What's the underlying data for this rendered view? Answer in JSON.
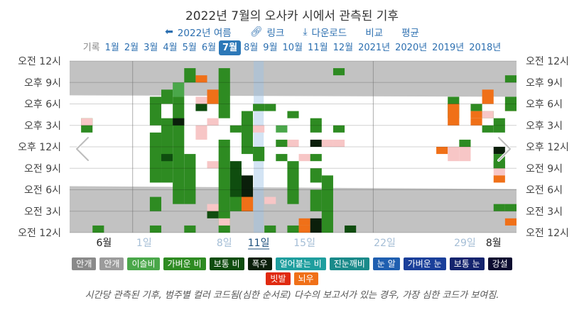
{
  "title": "2022년 7월의 오사카 시에서 관측된 기후",
  "toolbar": {
    "back_label": "2022년 여름",
    "link_label": "링크",
    "download_label": "다운로드",
    "compare_label": "비교",
    "average_label": "평균"
  },
  "months_bar": {
    "label": "기록",
    "items": [
      "1월",
      "2월",
      "3월",
      "4월",
      "5월",
      "6월",
      "7월",
      "8월",
      "9월",
      "10월",
      "11월",
      "12월",
      "2021년",
      "2020년",
      "2019년",
      "2018년"
    ],
    "active": "7월"
  },
  "legend": {
    "row1": [
      {
        "label": "안개",
        "color": "#8a8a8a"
      },
      {
        "label": "안개",
        "color": "#9b9b9b"
      },
      {
        "label": "이슬비",
        "color": "#4aa74a"
      },
      {
        "label": "가벼운 비",
        "color": "#2e8b22"
      },
      {
        "label": "보통 비",
        "color": "#0f4d0f"
      },
      {
        "label": "폭우",
        "color": "#0b1f0b"
      },
      {
        "label": "얼어붙는 비",
        "color": "#1e9e9e"
      },
      {
        "label": "진눈깨비",
        "color": "#1a8a8a"
      },
      {
        "label": "눈 알",
        "color": "#1f5fb0"
      },
      {
        "label": "가벼운 눈",
        "color": "#1a3f9a"
      },
      {
        "label": "보통 눈",
        "color": "#14246e"
      },
      {
        "label": "강설",
        "color": "#0c0c30"
      }
    ],
    "row2": [
      {
        "label": "빗발",
        "color": "#e02a10"
      },
      {
        "label": "뇌우",
        "color": "#f07018"
      }
    ]
  },
  "caption": "시간당 관측된 기후, 범주별 컬러 코드됨(심한 순서로) 다수의 보고서가 있는 경우, 가장 심한 코드가 보여짐.",
  "chart_data": {
    "type": "heatmap",
    "title": "2022년 7월의 오사카 시에서 관측된 기후",
    "y_ticks": [
      "오전 12시",
      "오전 3시",
      "오전 6시",
      "오전 9시",
      "오후 12시",
      "오후 3시",
      "오후 6시",
      "오후 9시",
      "오전 12시"
    ],
    "x_ticks": [
      {
        "label": "6월",
        "day": -2.5,
        "style": "month"
      },
      {
        "label": "1일",
        "day": 1,
        "style": "day"
      },
      {
        "label": "8일",
        "day": 8,
        "style": "day"
      },
      {
        "label": "11일",
        "day": 11,
        "style": "selected"
      },
      {
        "label": "15일",
        "day": 15,
        "style": "day"
      },
      {
        "label": "22일",
        "day": 22,
        "style": "day"
      },
      {
        "label": "29일",
        "day": 29,
        "style": "day"
      },
      {
        "label": "8월",
        "day": 31.5,
        "style": "month"
      }
    ],
    "x_range_days": [
      -5,
      34
    ],
    "selected_day": 11,
    "night": {
      "morning_end_hour": [
        6.5,
        6.1
      ],
      "evening_start_hour": [
        19.2,
        19.0
      ]
    },
    "categories": {
      "D": "이슬비",
      "L": "가벼운 비",
      "M": "보통 비",
      "H": "폭우",
      "T": "뇌우",
      "P": "light-pink"
    },
    "colors": {
      "D": "#4aa74a",
      "L": "#2e8b22",
      "M": "#0f4d0f",
      "H": "#0b1f0b",
      "T": "#f07018",
      "P": "#f7c6c6"
    },
    "observations": [
      {
        "day": -4,
        "hours": [
          [
            14,
            16,
            "L"
          ],
          [
            15,
            16,
            "P"
          ]
        ]
      },
      {
        "day": -3,
        "hours": [
          [
            0,
            1,
            "L"
          ]
        ]
      },
      {
        "day": 2,
        "hours": [
          [
            18,
            19,
            "P"
          ],
          [
            15,
            19,
            "L"
          ],
          [
            7,
            14,
            "L"
          ],
          [
            3,
            5,
            "L"
          ],
          [
            0,
            1,
            "L"
          ]
        ]
      },
      {
        "day": 3,
        "hours": [
          [
            7,
            16,
            "L"
          ],
          [
            10,
            11,
            "M"
          ],
          [
            18,
            20,
            "L"
          ]
        ]
      },
      {
        "day": 4,
        "hours": [
          [
            19,
            21,
            "D"
          ],
          [
            4,
            19,
            "L"
          ],
          [
            15,
            16,
            "H"
          ]
        ]
      },
      {
        "day": 5,
        "hours": [
          [
            21,
            23,
            "L"
          ],
          [
            4,
            11,
            "L"
          ],
          [
            0,
            1,
            "L"
          ]
        ]
      },
      {
        "day": 6,
        "hours": [
          [
            21,
            22,
            "T"
          ],
          [
            17,
            18,
            "M"
          ],
          [
            13,
            15,
            "P"
          ],
          [
            18,
            19,
            "P"
          ]
        ]
      },
      {
        "day": 7,
        "hours": [
          [
            18,
            20,
            "T"
          ],
          [
            15,
            16,
            "P"
          ],
          [
            2,
            4,
            "P"
          ],
          [
            2,
            3,
            "M"
          ],
          [
            9,
            10,
            "P"
          ]
        ]
      },
      {
        "day": 8,
        "hours": [
          [
            16,
            23,
            "L"
          ],
          [
            3,
            13,
            "L"
          ],
          [
            0,
            3,
            "L"
          ],
          [
            1,
            2,
            "P"
          ]
        ]
      },
      {
        "day": 9,
        "hours": [
          [
            3,
            9,
            "L"
          ],
          [
            5,
            10,
            "M"
          ],
          [
            14,
            15,
            "L"
          ]
        ]
      },
      {
        "day": 10,
        "hours": [
          [
            3,
            8,
            "H"
          ],
          [
            3,
            5,
            "T"
          ],
          [
            11,
            16,
            "L"
          ],
          [
            14,
            17,
            "L"
          ]
        ]
      },
      {
        "day": 11,
        "hours": [
          [
            10,
            12,
            "L"
          ],
          [
            17,
            18,
            "L"
          ],
          [
            14,
            15,
            "P"
          ]
        ]
      },
      {
        "day": 12,
        "hours": [
          [
            17,
            18,
            "L"
          ],
          [
            4,
            5,
            "P"
          ],
          [
            0,
            1,
            "L"
          ]
        ]
      },
      {
        "day": 13,
        "hours": [
          [
            10,
            11,
            "L"
          ],
          [
            12,
            13,
            "L"
          ],
          [
            14,
            15,
            "D"
          ]
        ]
      },
      {
        "day": 14,
        "hours": [
          [
            16,
            17,
            "L"
          ],
          [
            12,
            13,
            "P"
          ],
          [
            4,
            10,
            "L"
          ],
          [
            0,
            1,
            "L"
          ]
        ]
      },
      {
        "day": 15,
        "hours": [
          [
            10,
            11,
            "P"
          ],
          [
            1,
            2,
            "T"
          ],
          [
            0,
            1,
            "T"
          ]
        ]
      },
      {
        "day": 16,
        "hours": [
          [
            14,
            16,
            "L"
          ],
          [
            7,
            9,
            "L"
          ],
          [
            3,
            6,
            "L"
          ],
          [
            12,
            13,
            "H"
          ],
          [
            10,
            11,
            "L"
          ],
          [
            0,
            2,
            "H"
          ]
        ]
      },
      {
        "day": 17,
        "hours": [
          [
            12,
            13,
            "P"
          ],
          [
            0,
            8,
            "L"
          ]
        ]
      },
      {
        "day": 18,
        "hours": [
          [
            22,
            23,
            "L"
          ],
          [
            14,
            15,
            "L"
          ],
          [
            12,
            13,
            "P"
          ]
        ]
      },
      {
        "day": 19,
        "hours": [
          [
            0,
            1,
            "M"
          ]
        ]
      },
      {
        "day": 27,
        "hours": [
          [
            11,
            12,
            "T"
          ]
        ]
      },
      {
        "day": 28,
        "hours": [
          [
            15,
            16,
            "P"
          ],
          [
            16,
            19,
            "L"
          ],
          [
            15,
            18,
            "T"
          ],
          [
            10,
            12,
            "P"
          ]
        ]
      },
      {
        "day": 29,
        "hours": [
          [
            12,
            13,
            "L"
          ],
          [
            10,
            12,
            "P"
          ]
        ]
      },
      {
        "day": 30,
        "hours": [
          [
            17,
            18,
            "L"
          ],
          [
            15,
            16,
            "T"
          ],
          [
            16,
            17,
            "T"
          ]
        ]
      },
      {
        "day": 31,
        "hours": [
          [
            18,
            20,
            "T"
          ],
          [
            16,
            17,
            "L"
          ],
          [
            16,
            17,
            "P"
          ],
          [
            14,
            15,
            "L"
          ]
        ]
      },
      {
        "day": 32,
        "hours": [
          [
            14,
            16,
            "L"
          ],
          [
            11,
            12,
            "H"
          ],
          [
            9,
            11,
            "L"
          ],
          [
            8,
            9,
            "P"
          ],
          [
            9,
            10,
            "L"
          ],
          [
            7,
            8,
            "T"
          ],
          [
            3,
            4,
            "L"
          ]
        ]
      },
      {
        "day": 33,
        "hours": [
          [
            21,
            22,
            "L"
          ],
          [
            17,
            18,
            "T"
          ],
          [
            17,
            19,
            "L"
          ],
          [
            3,
            4,
            "L"
          ],
          [
            1,
            2,
            "T"
          ]
        ]
      }
    ]
  }
}
